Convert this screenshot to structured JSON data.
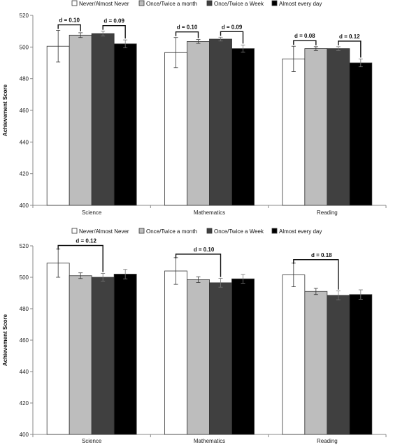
{
  "chart_data": [
    {
      "type": "bar",
      "ylabel": "Achievement Score",
      "ylim": [
        400,
        520
      ],
      "yticks": [
        400,
        420,
        440,
        460,
        480,
        500,
        520
      ],
      "categories": [
        "Science",
        "Mathematics",
        "Reading"
      ],
      "series": [
        {
          "name": "Never/Almost Never",
          "color": "#ffffff",
          "values": [
            500.5,
            496.5,
            492.5
          ],
          "errors": [
            10,
            9.5,
            8
          ]
        },
        {
          "name": "Once/Twice a month",
          "color": "#bdbdbd",
          "values": [
            507.5,
            503.5,
            499
          ],
          "errors": [
            1.5,
            1.2,
            1.2
          ]
        },
        {
          "name": "Once/Twice a Week",
          "color": "#404040",
          "values": [
            508.5,
            505,
            499
          ],
          "errors": [
            1.5,
            1.2,
            1.2
          ]
        },
        {
          "name": "Almost every day",
          "color": "#000000",
          "values": [
            502,
            499,
            490
          ],
          "errors": [
            2.5,
            2.3,
            2.5
          ]
        }
      ],
      "effect_sizes": [
        {
          "category": 0,
          "from": 0,
          "to": 1,
          "label": "d = 0.10"
        },
        {
          "category": 0,
          "from": 2,
          "to": 3,
          "label": "d = 0.09"
        },
        {
          "category": 1,
          "from": 0,
          "to": 1,
          "label": "d = 0.10"
        },
        {
          "category": 1,
          "from": 2,
          "to": 3,
          "label": "d = 0.09"
        },
        {
          "category": 2,
          "from": 0,
          "to": 1,
          "label": "d = 0.08"
        },
        {
          "category": 2,
          "from": 2,
          "to": 3,
          "label": "d = 0.12"
        }
      ],
      "legend_position": "top",
      "grid": false
    },
    {
      "type": "bar",
      "ylabel": "Achievement Score",
      "ylim": [
        400,
        520
      ],
      "yticks": [
        400,
        420,
        440,
        460,
        480,
        500,
        520
      ],
      "categories": [
        "Science",
        "Mathematics",
        "Reading"
      ],
      "series": [
        {
          "name": "Never/Almost Never",
          "color": "#ffffff",
          "values": [
            509,
            504,
            501.5
          ],
          "errors": [
            9,
            8.5,
            7.5
          ]
        },
        {
          "name": "Once/Twice a month",
          "color": "#bdbdbd",
          "values": [
            501,
            498.5,
            491
          ],
          "errors": [
            1.8,
            1.8,
            2
          ]
        },
        {
          "name": "Once/Twice a Week",
          "color": "#404040",
          "values": [
            500,
            496.5,
            488.5
          ],
          "errors": [
            2.5,
            2.8,
            2.8
          ]
        },
        {
          "name": "Almost every day",
          "color": "#000000",
          "values": [
            502,
            499,
            489
          ],
          "errors": [
            3,
            2.8,
            3
          ]
        }
      ],
      "effect_sizes": [
        {
          "category": 0,
          "from": 0,
          "to": 2,
          "label": "d = 0.12"
        },
        {
          "category": 1,
          "from": 0,
          "to": 2,
          "label": "d = 0.10"
        },
        {
          "category": 2,
          "from": 0,
          "to": 2,
          "label": "d = 0.18"
        }
      ],
      "legend_position": "top",
      "grid": false
    }
  ]
}
